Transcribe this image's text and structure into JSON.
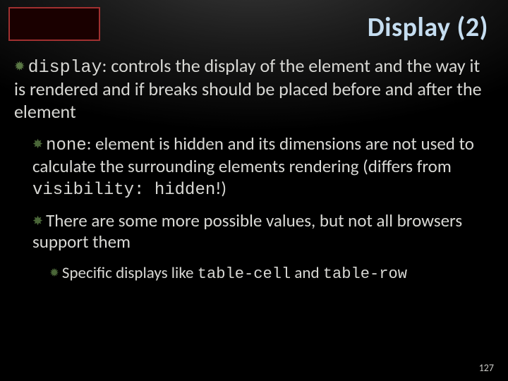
{
  "title": "Display (2)",
  "bullets": {
    "l1": {
      "code": "display",
      "text": ": controls the display of the element and the way it is rendered and if breaks should be placed before and after the element"
    },
    "l2a": {
      "code1": "none",
      "mid": ": element is hidden and its dimensions are not used to calculate the surrounding elements rendering (differs from ",
      "code2": "visibility: hidden",
      "tail": "!)"
    },
    "l2b": "There are some more possible values, but not all browsers support them",
    "l3": {
      "lead": "Specific displays like ",
      "code1": "table-cell",
      "mid": " and ",
      "code2": "table-row"
    }
  },
  "page_number": "127",
  "colors": {
    "title": "#c5ddf0",
    "text": "#d8d8d4",
    "bullet_icon": "#5a7845",
    "badge_border": "#a03030",
    "badge_bg": "#1a0000"
  }
}
